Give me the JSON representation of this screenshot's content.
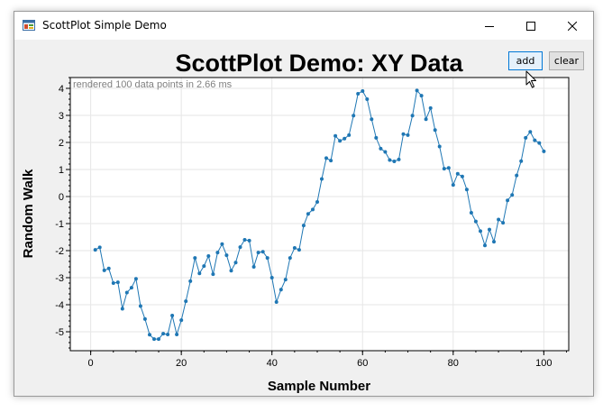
{
  "window": {
    "title": "ScottPlot Simple Demo",
    "icons": {
      "app": "app-icon",
      "minimize": "minimize-icon",
      "maximize": "maximize-icon",
      "close": "close-icon"
    }
  },
  "toolbar": {
    "add_label": "add",
    "clear_label": "clear"
  },
  "colors": {
    "series": "#1f77b4",
    "window_bg": "#f0f0f0",
    "accent": "#0078d7"
  },
  "chart_data": {
    "type": "scatter",
    "title": "ScottPlot Demo: XY Data",
    "xlabel": "Sample Number",
    "ylabel": "Random Walk",
    "annotation": "rendered 100 data points in 2.66 ms",
    "xlim": [
      -4.5,
      105.5
    ],
    "ylim": [
      -5.7,
      4.4
    ],
    "grid": true,
    "x_ticks": [
      0,
      20,
      40,
      60,
      80,
      100
    ],
    "x_tick_labels": [
      "0",
      "20",
      "40",
      "60",
      "80",
      "100"
    ],
    "y_ticks": [
      4,
      3,
      2,
      1,
      0,
      -1,
      -2,
      -3,
      -4,
      -5
    ],
    "y_tick_labels": [
      "4",
      "3",
      "2",
      "1",
      "0",
      "-1",
      "-2",
      "-3",
      "-4",
      "-5"
    ],
    "series": [
      {
        "values": [
          [
            1,
            -1.97
          ],
          [
            2,
            -1.88
          ],
          [
            3,
            -2.73
          ],
          [
            4,
            -2.66
          ],
          [
            5,
            -3.2
          ],
          [
            6,
            -3.17
          ],
          [
            7,
            -4.15
          ],
          [
            8,
            -3.55
          ],
          [
            9,
            -3.37
          ],
          [
            10,
            -3.04
          ],
          [
            11,
            -4.05
          ],
          [
            12,
            -4.53
          ],
          [
            13,
            -5.11
          ],
          [
            14,
            -5.27
          ],
          [
            15,
            -5.27
          ],
          [
            16,
            -5.07
          ],
          [
            17,
            -5.1
          ],
          [
            18,
            -4.4
          ],
          [
            19,
            -5.1
          ],
          [
            20,
            -4.57
          ],
          [
            21,
            -3.87
          ],
          [
            22,
            -3.13
          ],
          [
            23,
            -2.27
          ],
          [
            24,
            -2.84
          ],
          [
            25,
            -2.57
          ],
          [
            26,
            -2.2
          ],
          [
            27,
            -2.87
          ],
          [
            28,
            -2.07
          ],
          [
            29,
            -1.76
          ],
          [
            30,
            -2.17
          ],
          [
            31,
            -2.74
          ],
          [
            32,
            -2.44
          ],
          [
            33,
            -1.87
          ],
          [
            34,
            -1.6
          ],
          [
            35,
            -1.63
          ],
          [
            36,
            -2.6
          ],
          [
            37,
            -2.07
          ],
          [
            38,
            -2.04
          ],
          [
            39,
            -2.27
          ],
          [
            40,
            -3.0
          ],
          [
            41,
            -3.9
          ],
          [
            42,
            -3.44
          ],
          [
            43,
            -3.07
          ],
          [
            44,
            -2.27
          ],
          [
            45,
            -1.9
          ],
          [
            46,
            -1.97
          ],
          [
            47,
            -1.07
          ],
          [
            48,
            -0.64
          ],
          [
            49,
            -0.48
          ],
          [
            50,
            -0.2
          ],
          [
            51,
            0.65
          ],
          [
            52,
            1.42
          ],
          [
            53,
            1.33
          ],
          [
            54,
            2.24
          ],
          [
            55,
            2.06
          ],
          [
            56,
            2.14
          ],
          [
            57,
            2.27
          ],
          [
            58,
            2.99
          ],
          [
            59,
            3.8
          ],
          [
            60,
            3.9
          ],
          [
            61,
            3.6
          ],
          [
            62,
            2.86
          ],
          [
            63,
            2.17
          ],
          [
            64,
            1.77
          ],
          [
            65,
            1.65
          ],
          [
            66,
            1.35
          ],
          [
            67,
            1.3
          ],
          [
            68,
            1.37
          ],
          [
            69,
            2.31
          ],
          [
            70,
            2.27
          ],
          [
            71,
            2.99
          ],
          [
            72,
            3.92
          ],
          [
            73,
            3.73
          ],
          [
            74,
            2.86
          ],
          [
            75,
            3.27
          ],
          [
            76,
            2.46
          ],
          [
            77,
            1.85
          ],
          [
            78,
            1.03
          ],
          [
            79,
            1.06
          ],
          [
            80,
            0.43
          ],
          [
            81,
            0.84
          ],
          [
            82,
            0.74
          ],
          [
            83,
            0.26
          ],
          [
            84,
            -0.6
          ],
          [
            85,
            -0.92
          ],
          [
            86,
            -1.28
          ],
          [
            87,
            -1.81
          ],
          [
            88,
            -1.22
          ],
          [
            89,
            -1.67
          ],
          [
            90,
            -0.85
          ],
          [
            91,
            -0.97
          ],
          [
            92,
            -0.14
          ],
          [
            93,
            0.06
          ],
          [
            94,
            0.78
          ],
          [
            95,
            1.31
          ],
          [
            96,
            2.17
          ],
          [
            97,
            2.39
          ],
          [
            98,
            2.08
          ],
          [
            99,
            1.98
          ],
          [
            100,
            1.67
          ]
        ]
      }
    ]
  }
}
